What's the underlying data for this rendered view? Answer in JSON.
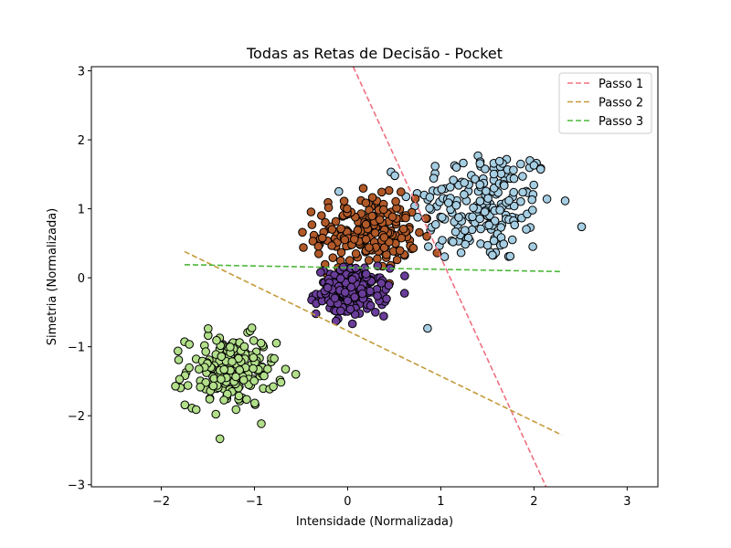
{
  "chart_data": {
    "type": "scatter",
    "title": "Todas as Retas de Decisão - Pocket",
    "xlabel": "Intensidade (Normalizada)",
    "ylabel": "Simetria (Normalizada)",
    "xlim": [
      -2.75,
      3.33
    ],
    "ylim": [
      -3.03,
      3.06
    ],
    "xticks": [
      -2,
      -1,
      0,
      1,
      2,
      3
    ],
    "yticks": [
      -3,
      -2,
      -1,
      0,
      1,
      2,
      3
    ],
    "xtick_labels": [
      "−2",
      "−1",
      "0",
      "1",
      "2",
      "3"
    ],
    "ytick_labels": [
      "−3",
      "−2",
      "−1",
      "0",
      "1",
      "2",
      "3"
    ],
    "clusters": [
      {
        "name": "cluster-light-blue",
        "color": "#a6cee3",
        "center": [
          1.45,
          1.05
        ],
        "spread": [
          0.45,
          0.5
        ],
        "count": 200
      },
      {
        "name": "cluster-brown",
        "color": "#b15928",
        "center": [
          0.2,
          0.65
        ],
        "spread": [
          0.32,
          0.3
        ],
        "count": 220
      },
      {
        "name": "cluster-purple",
        "color": "#6a3d9a",
        "center": [
          0.05,
          -0.2
        ],
        "spread": [
          0.22,
          0.2
        ],
        "count": 180
      },
      {
        "name": "cluster-light-green",
        "color": "#b2df8a",
        "center": [
          -1.25,
          -1.35
        ],
        "spread": [
          0.28,
          0.3
        ],
        "count": 200
      }
    ],
    "lines": [
      {
        "name": "Passo 1",
        "color": "#f07080",
        "points": [
          [
            0.06,
            3.06
          ],
          [
            2.13,
            -3.03
          ]
        ]
      },
      {
        "name": "Passo 2",
        "color": "#c49a3a",
        "points": [
          [
            -1.75,
            0.38
          ],
          [
            2.3,
            -2.28
          ]
        ]
      },
      {
        "name": "Passo 3",
        "color": "#4cb83a",
        "points": [
          [
            -1.75,
            0.19
          ],
          [
            2.3,
            0.09
          ]
        ]
      }
    ],
    "legend": {
      "placement": "top-right",
      "entries": [
        "Passo 1",
        "Passo 2",
        "Passo 3"
      ]
    },
    "grid": false
  }
}
